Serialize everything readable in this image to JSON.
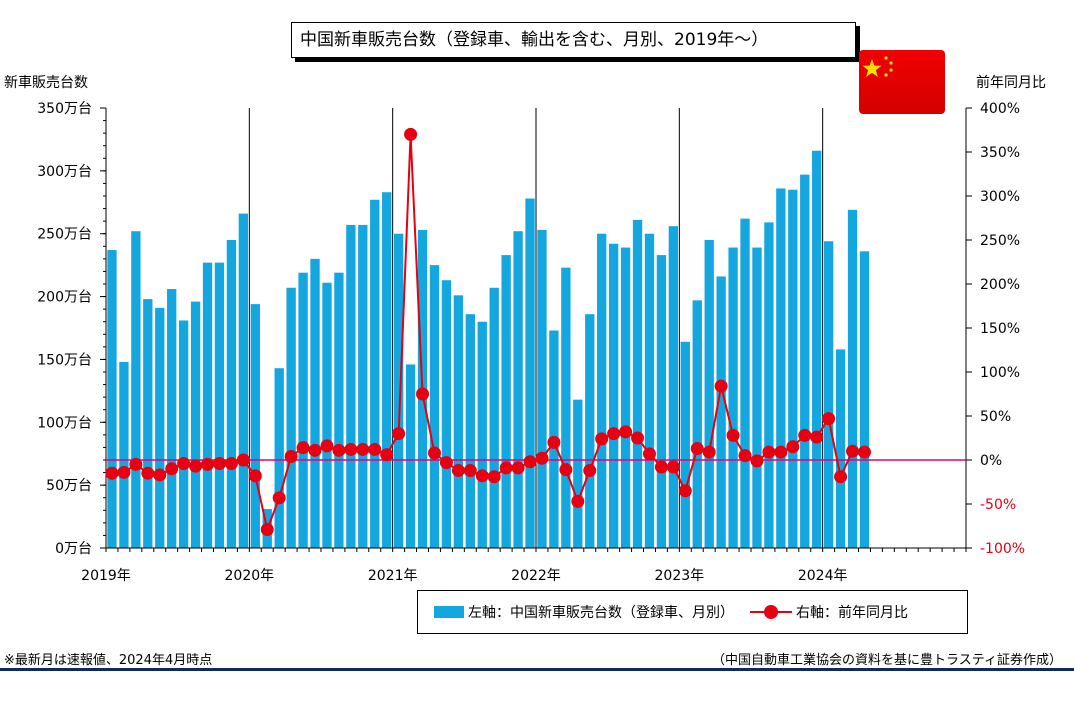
{
  "title": "中国新車販売台数（登録車、輸出を含む、月別、2019年～）",
  "left_axis_title": "新車販売台数",
  "right_axis_title": "前年同月比",
  "legend": {
    "bars": "左軸：中国新車販売台数（登録車、月別）",
    "line": "右軸：前年同月比"
  },
  "notes": {
    "left": "※最新月は速報値、2024年4月時点",
    "right": "（中国自動車工業協会の資料を基に豊トラスティ証券作成）"
  },
  "flag_icon": "china-flag-icon",
  "colors": {
    "bar": "#14a6df",
    "line": "#e60012",
    "zero_line": "#e4007f"
  },
  "chart_data": {
    "type": "bar",
    "title": "中国新車販売台数（登録車、輸出を含む、月別、2019年～）",
    "x_labels": [
      "2019年",
      "2020年",
      "2021年",
      "2022年",
      "2023年",
      "2024年"
    ],
    "left_axis": {
      "ticks": [
        "0万台",
        "50万台",
        "100万台",
        "150万台",
        "200万台",
        "250万台",
        "300万台",
        "350万台"
      ],
      "ylim": [
        0,
        350
      ],
      "unit": "万台"
    },
    "right_axis": {
      "ticks": [
        "-100%",
        "-50%",
        "0%",
        "50%",
        "100%",
        "150%",
        "200%",
        "250%",
        "300%",
        "350%",
        "400%"
      ],
      "ylim": [
        -100,
        400
      ],
      "unit": "%"
    },
    "grid": false,
    "num_slots": 72,
    "series": [
      {
        "name": "左軸：中国新車販売台数（登録車、月別）",
        "type": "bar",
        "values": [
          237,
          148,
          252,
          198,
          191,
          206,
          181,
          196,
          227,
          227,
          245,
          266,
          194,
          31,
          143,
          207,
          219,
          230,
          211,
          219,
          257,
          257,
          277,
          283,
          250,
          146,
          253,
          225,
          213,
          201,
          186,
          180,
          207,
          233,
          252,
          278,
          253,
          173,
          223,
          118,
          186,
          250,
          242,
          239,
          261,
          250,
          233,
          256,
          164,
          197,
          245,
          216,
          239,
          262,
          239,
          259,
          286,
          285,
          297,
          316,
          244,
          158,
          269,
          236
        ]
      },
      {
        "name": "右軸：前年同月比",
        "type": "line",
        "values": [
          -15,
          -14,
          -5,
          -15,
          -17,
          -10,
          -4,
          -7,
          -5,
          -4,
          -4,
          0,
          -18,
          -79,
          -43,
          4,
          14,
          11,
          16,
          11,
          12,
          12,
          12,
          6,
          30,
          370,
          75,
          8,
          -3,
          -12,
          -12,
          -18,
          -19,
          -9,
          -9,
          -2,
          2,
          20,
          -11,
          -47,
          -12,
          24,
          30,
          32,
          25,
          7,
          -8,
          -8,
          -35,
          13,
          9,
          84,
          28,
          5,
          -1,
          9,
          9,
          15,
          28,
          26,
          47,
          -19,
          10,
          9
        ]
      }
    ]
  }
}
